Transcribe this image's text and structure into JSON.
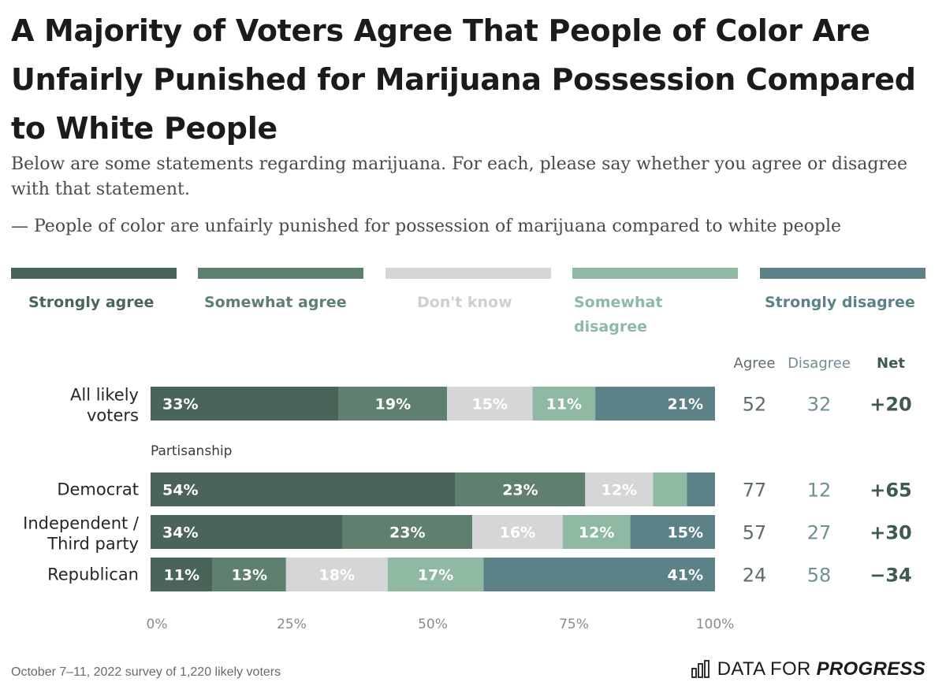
{
  "header": {
    "title": "A Majority of Voters Agree That People of Color Are Unfairly Punished for Marijuana Possession Compared to White People",
    "subtitle": "Below are some statements regarding marijuana. For each, please say whether you agree or disagree with that statement.",
    "question": "— People of color are unfairly punished for possession of marijuana compared to white people"
  },
  "chart_data": {
    "type": "bar",
    "orientation": "horizontal",
    "stacked": true,
    "xlim": [
      0,
      100
    ],
    "x_ticks": [
      "0%",
      "25%",
      "50%",
      "75%",
      "100%"
    ],
    "legend_placement": "top",
    "categories": [
      "All likely voters",
      "Democrat",
      "Independent / Third party",
      "Republican"
    ],
    "group_label": "Partisanship",
    "series": [
      {
        "name": "Strongly agree",
        "color": "#4a6459",
        "label_color": "#4a6459",
        "values": [
          33,
          54,
          34,
          11
        ],
        "labels": [
          "33%",
          "54%",
          "34%",
          "11%"
        ]
      },
      {
        "name": "Somewhat agree",
        "color": "#5f7f6f",
        "label_color": "#5f7f6f",
        "values": [
          19,
          23,
          23,
          13
        ],
        "labels": [
          "19%",
          "23%",
          "23%",
          "13%"
        ]
      },
      {
        "name": "Don't know",
        "color": "#d6d6d8",
        "label_color": "#cfcfd1",
        "values": [
          15,
          12,
          16,
          18
        ],
        "labels": [
          "15%",
          "12%",
          "16%",
          "18%"
        ]
      },
      {
        "name": "Somewhat disagree",
        "color": "#8fb9a3",
        "label_color": "#8fb9a3",
        "values": [
          11,
          6,
          12,
          17
        ],
        "labels": [
          "11%",
          "",
          "12%",
          "17%"
        ]
      },
      {
        "name": "Strongly disagree",
        "color": "#5c8288",
        "label_color": "#5c8288",
        "values": [
          21,
          5,
          15,
          41
        ],
        "labels": [
          "21%",
          "",
          "15%",
          "41%"
        ]
      }
    ],
    "columns": {
      "headers": [
        "Agree",
        "Disagree",
        "Net"
      ],
      "agree": [
        "52",
        "77",
        "57",
        "24"
      ],
      "disagree": [
        "32",
        "12",
        "27",
        "58"
      ],
      "net": [
        "+20",
        "+65",
        "+30",
        "−34"
      ]
    }
  },
  "footer": {
    "note": "October 7–11, 2022 survey of 1,220 likely voters",
    "brand_plain": "DATA FOR ",
    "brand_bold": "PROGRESS"
  }
}
